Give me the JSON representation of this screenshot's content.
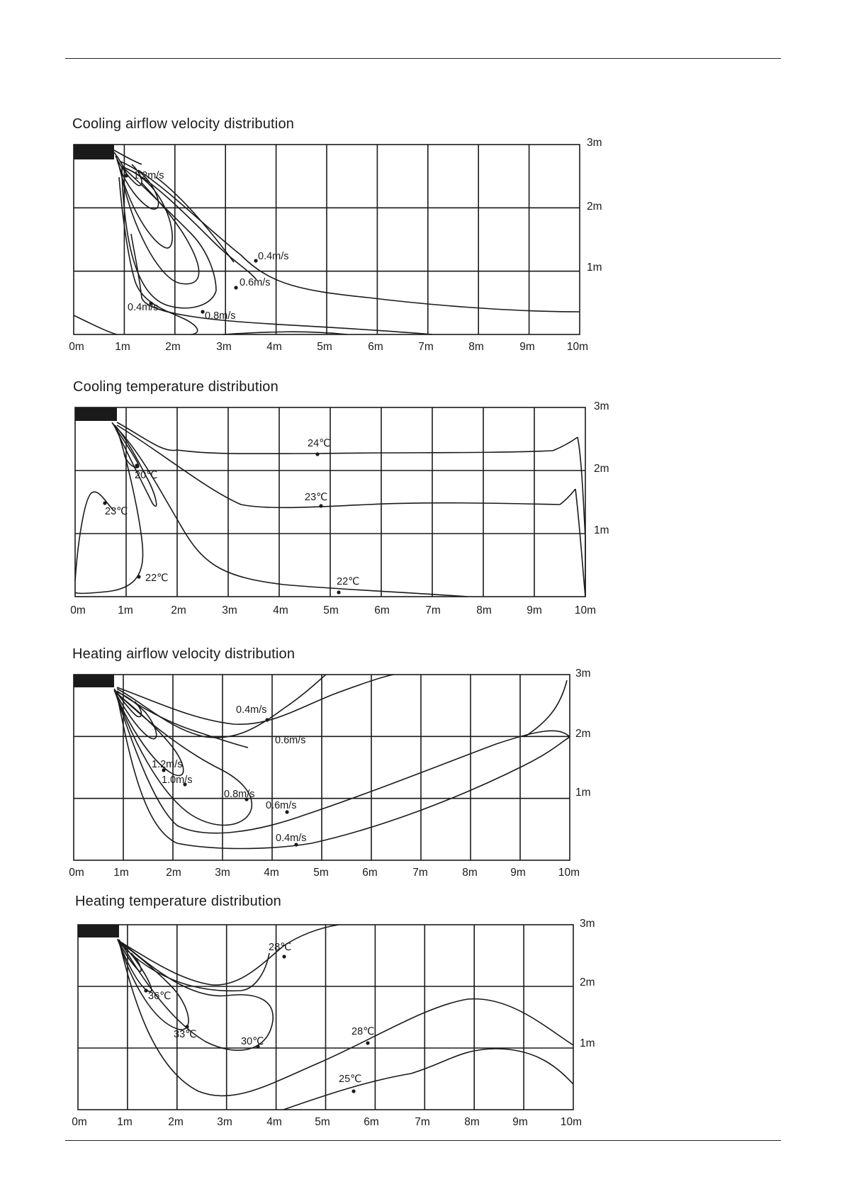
{
  "charts": [
    {
      "title": "Cooling airflow velocity distribution",
      "x_ticks": [
        "0m",
        "1m",
        "2m",
        "3m",
        "4m",
        "5m",
        "6m",
        "7m",
        "8m",
        "9m",
        "10m"
      ],
      "y_ticks": [
        "3m",
        "2m",
        "1m"
      ],
      "labels": [
        "1.2m/s",
        "0.4m/s",
        "0.6m/s",
        "0.4m/s",
        "0.8m/s"
      ]
    },
    {
      "title": "Cooling temperature distribution",
      "x_ticks": [
        "0m",
        "1m",
        "2m",
        "3m",
        "4m",
        "5m",
        "6m",
        "7m",
        "8m",
        "9m",
        "10m"
      ],
      "y_ticks": [
        "3m",
        "2m",
        "1m"
      ],
      "labels": [
        "24℃",
        "20℃",
        "23℃",
        "23℃",
        "22℃",
        "22℃"
      ]
    },
    {
      "title": "Heating airflow velocity distribution",
      "x_ticks": [
        "0m",
        "1m",
        "2m",
        "3m",
        "4m",
        "5m",
        "6m",
        "7m",
        "8m",
        "9m",
        "10m"
      ],
      "y_ticks": [
        "3m",
        "2m",
        "1m"
      ],
      "labels": [
        "0.4m/s",
        "0.6m/s",
        "1.2m/s",
        "1.0m/s",
        "0.8m/s",
        "0.6m/s",
        "0.4m/s"
      ]
    },
    {
      "title": "Heating temperature distribution",
      "x_ticks": [
        "0m",
        "1m",
        "2m",
        "3m",
        "4m",
        "5m",
        "6m",
        "7m",
        "8m",
        "9m",
        "10m"
      ],
      "y_ticks": [
        "3m",
        "2m",
        "1m"
      ],
      "labels": [
        "28℃",
        "36℃",
        "33℃",
        "30℃",
        "28℃",
        "25℃"
      ]
    }
  ]
}
